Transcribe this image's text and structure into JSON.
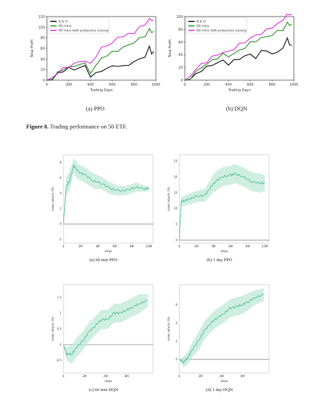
{
  "top_charts": [
    {
      "id": "ppo",
      "caption": "(a)  PPO",
      "xlabel": "Trading Days",
      "ylabel": "Total Profit",
      "xticks": [
        "0",
        "200",
        "400",
        "600",
        "800",
        "1000"
      ],
      "yticks": [
        "0",
        "20",
        "40",
        "60",
        "80",
        "100",
        "120"
      ],
      "legend": [
        "B & H",
        "60 mins",
        "60 mins with protective closing"
      ]
    },
    {
      "id": "dqn",
      "caption": "(b)  DQN",
      "xlabel": "Trading Days",
      "ylabel": "Total Profit",
      "xticks": [
        "0",
        "200",
        "400",
        "600",
        "800",
        "1000"
      ],
      "yticks": [
        "0",
        "20",
        "40",
        "60",
        "80",
        "100"
      ],
      "legend": [
        "B & H",
        "60 mins",
        "60 mins with protective closing"
      ]
    }
  ],
  "figure_caption": {
    "label": "Figure 8.",
    "text": " Trading performance on 50 ETF."
  },
  "bottom_charts": [
    {
      "id": "ppo60",
      "caption": "(a)  60 min PPO",
      "xlabel": "steps",
      "ylabel": "mean returns (%)",
      "xticks": [
        "0",
        "2M",
        "4M",
        "6M",
        "8M",
        "10M"
      ],
      "yticks": [
        "-2",
        "0",
        "2",
        "4",
        "6",
        "8"
      ]
    },
    {
      "id": "ppo1d",
      "caption": "(b)  1 day PPO",
      "xlabel": "steps",
      "ylabel": "mean returns (%)",
      "xticks": [
        "0",
        "2M",
        "4M",
        "6M",
        "8M",
        "10M"
      ],
      "yticks": [
        "0",
        "5",
        "10",
        "15",
        "20",
        "25"
      ]
    },
    {
      "id": "dqn60",
      "caption": "(c)  60 min DQN",
      "xlabel": "steps",
      "ylabel": "mean returns (%)",
      "xticks": [
        "0",
        "2M",
        "4M",
        "6M"
      ],
      "yticks": [
        "-0.5",
        "0",
        "0.5",
        "1",
        "1.5"
      ]
    },
    {
      "id": "dqn1d",
      "caption": "(d)  1 day DQN",
      "xlabel": "steps",
      "ylabel": "mean returns (%)",
      "xticks": [
        "0",
        "2M",
        "4M",
        "6M"
      ],
      "yticks": [
        "0",
        "2",
        "4",
        "6"
      ]
    }
  ],
  "colors": {
    "bh": "#000000",
    "m60": "#1f8a1f",
    "protective": "#e020e0",
    "band": "#bfe8d8",
    "line": "#4fb99a",
    "zero": "#888888"
  },
  "chart_data": [
    {
      "type": "line",
      "title": "",
      "xlabel": "Trading Days",
      "ylabel": "Total Profit",
      "xlim": [
        0,
        1000
      ],
      "ylim": [
        0,
        120
      ],
      "x": [
        0,
        50,
        100,
        150,
        200,
        250,
        300,
        350,
        400,
        450,
        500,
        550,
        600,
        650,
        700,
        750,
        800,
        850,
        900,
        940,
        960,
        980
      ],
      "series": [
        {
          "name": "B & H",
          "values": [
            0,
            2,
            12,
            18,
            22,
            20,
            24,
            26,
            8,
            12,
            18,
            22,
            26,
            28,
            25,
            30,
            34,
            40,
            45,
            62,
            52,
            54
          ]
        },
        {
          "name": "60 mins",
          "values": [
            0,
            4,
            14,
            20,
            26,
            24,
            32,
            30,
            14,
            28,
            40,
            48,
            52,
            56,
            62,
            66,
            72,
            78,
            84,
            96,
            90,
            92
          ]
        },
        {
          "name": "60 mins with protective closing",
          "values": [
            0,
            5,
            14,
            22,
            26,
            30,
            36,
            36,
            30,
            46,
            60,
            66,
            70,
            80,
            84,
            86,
            90,
            100,
            104,
            118,
            110,
            113
          ]
        }
      ]
    },
    {
      "type": "line",
      "title": "",
      "xlabel": "Trading Days",
      "ylabel": "Total Profit",
      "xlim": [
        0,
        1000
      ],
      "ylim": [
        0,
        100
      ],
      "x": [
        0,
        50,
        100,
        150,
        200,
        250,
        300,
        350,
        400,
        450,
        500,
        550,
        600,
        650,
        700,
        750,
        800,
        850,
        900,
        940,
        960,
        980
      ],
      "series": [
        {
          "name": "B & H",
          "values": [
            0,
            3,
            8,
            16,
            20,
            24,
            28,
            30,
            26,
            30,
            34,
            38,
            40,
            36,
            44,
            48,
            40,
            44,
            52,
            64,
            58,
            55
          ]
        },
        {
          "name": "60 mins",
          "values": [
            0,
            4,
            12,
            20,
            26,
            30,
            36,
            40,
            38,
            42,
            46,
            52,
            58,
            62,
            66,
            68,
            72,
            76,
            80,
            90,
            86,
            88
          ]
        },
        {
          "name": "60 mins with protective closing",
          "values": [
            0,
            6,
            18,
            24,
            30,
            36,
            40,
            44,
            44,
            50,
            56,
            60,
            66,
            70,
            74,
            78,
            84,
            88,
            94,
            106,
            100,
            104
          ]
        }
      ]
    },
    {
      "type": "area",
      "title": "",
      "xlabel": "steps",
      "ylabel": "mean returns (%)",
      "x_unit_millions": true,
      "xlim": [
        0,
        10.5
      ],
      "ylim": [
        -2.5,
        9
      ],
      "x": [
        0,
        0.3,
        0.7,
        1.2,
        1.7,
        2.5,
        3.5,
        4.5,
        5.5,
        6.5,
        7.5,
        8.5,
        9.5,
        10
      ],
      "series": [
        {
          "name": "",
          "values": [
            0,
            4.8,
            5.6,
            7.6,
            6.8,
            6.4,
            5.6,
            5.3,
            4.6,
            4.3,
            4.4,
            4.8,
            4.6,
            4.6
          ]
        },
        {
          "name": "",
          "values": [
            0,
            6.0,
            6.8,
            8.6,
            7.8,
            7.4,
            6.6,
            6.1,
            5.4,
            4.9,
            5.0,
            5.4,
            5.0,
            4.9
          ]
        },
        {
          "name": "",
          "values": [
            0,
            3.6,
            4.4,
            6.6,
            5.8,
            5.4,
            4.6,
            4.5,
            3.8,
            3.7,
            3.8,
            4.2,
            4.2,
            4.3
          ]
        }
      ]
    },
    {
      "type": "area",
      "title": "",
      "xlabel": "steps",
      "ylabel": "mean returns (%)",
      "x_unit_millions": true,
      "xlim": [
        0,
        10.5
      ],
      "ylim": [
        -1,
        27
      ],
      "x": [
        0,
        0.2,
        0.6,
        1.2,
        2.0,
        3.0,
        3.6,
        4.2,
        5.0,
        6.0,
        6.5,
        7.5,
        8.5,
        9.5,
        10
      ],
      "series": [
        {
          "name": "",
          "values": [
            0,
            12,
            12.5,
            13,
            13.8,
            14.2,
            16.5,
            18.5,
            20,
            20.5,
            21,
            20,
            18.5,
            18,
            18
          ]
        },
        {
          "name": "",
          "values": [
            0,
            13.5,
            14,
            14.8,
            15.6,
            16.2,
            19,
            21.5,
            23,
            23.5,
            24,
            23,
            21.5,
            21,
            20.5
          ]
        },
        {
          "name": "",
          "values": [
            0,
            10.5,
            11,
            11.2,
            12,
            12.2,
            14,
            15.5,
            17,
            17.5,
            18,
            17,
            15.5,
            15,
            15.5
          ]
        }
      ]
    },
    {
      "type": "area",
      "title": "",
      "xlabel": "steps",
      "ylabel": "mean returns (%)",
      "x_unit_millions": true,
      "xlim": [
        0,
        8.5
      ],
      "ylim": [
        -0.9,
        1.9
      ],
      "x": [
        0,
        0.3,
        0.8,
        1.2,
        1.8,
        2.4,
        3.0,
        3.6,
        4.2,
        4.8,
        5.4,
        6.0,
        6.6,
        7.2,
        8.0
      ],
      "series": [
        {
          "name": "",
          "values": [
            0,
            -0.3,
            -0.3,
            -0.1,
            0.1,
            0.4,
            0.6,
            0.8,
            0.8,
            1.0,
            1.0,
            1.1,
            1.2,
            1.3,
            1.4
          ]
        },
        {
          "name": "",
          "values": [
            0,
            -0.1,
            0.0,
            0.2,
            0.4,
            0.7,
            0.9,
            1.1,
            1.1,
            1.3,
            1.3,
            1.4,
            1.5,
            1.6,
            1.6
          ]
        },
        {
          "name": "",
          "values": [
            0,
            -0.5,
            -0.6,
            -0.4,
            -0.2,
            0.1,
            0.3,
            0.5,
            0.5,
            0.7,
            0.7,
            0.8,
            0.9,
            1.0,
            1.2
          ]
        }
      ]
    },
    {
      "type": "area",
      "title": "",
      "xlabel": "steps",
      "ylabel": "mean returns (%)",
      "x_unit_millions": true,
      "xlim": [
        0,
        8.5
      ],
      "ylim": [
        -1.5,
        8.2
      ],
      "x": [
        0,
        0.4,
        0.8,
        1.2,
        1.8,
        2.4,
        3.0,
        3.6,
        4.2,
        4.8,
        5.4,
        6.0,
        6.6,
        7.2,
        8.0
      ],
      "series": [
        {
          "name": "",
          "values": [
            0,
            -0.3,
            0.2,
            1.0,
            2.0,
            3.2,
            4.0,
            4.6,
            5.0,
            5.6,
            5.8,
            6.0,
            6.4,
            6.8,
            7.1
          ]
        },
        {
          "name": "",
          "values": [
            0,
            0.3,
            0.9,
            1.8,
            3.0,
            4.2,
            5.0,
            5.6,
            6.0,
            6.6,
            6.8,
            7.0,
            7.3,
            7.6,
            7.8
          ]
        },
        {
          "name": "",
          "values": [
            0,
            -0.9,
            -0.5,
            0.2,
            1.0,
            2.2,
            3.0,
            3.6,
            4.0,
            4.6,
            4.8,
            5.0,
            5.5,
            6.0,
            6.4
          ]
        }
      ]
    }
  ]
}
